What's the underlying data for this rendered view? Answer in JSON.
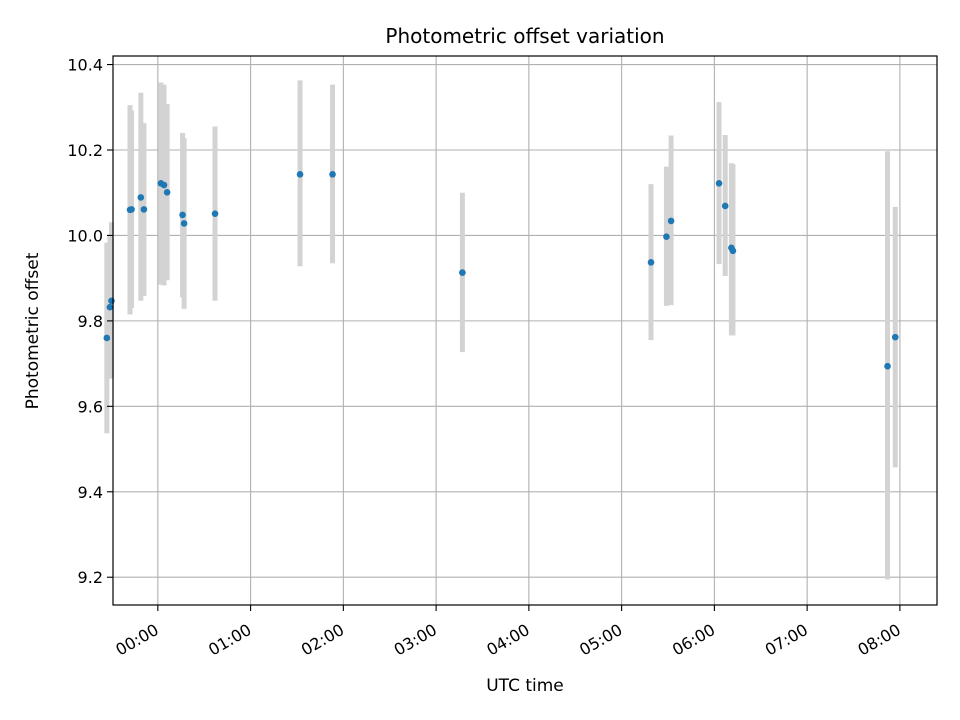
{
  "chart_data": {
    "type": "scatter",
    "title": "Photometric offset variation",
    "xlabel": "UTC time",
    "ylabel": "Photometric offset",
    "grid": true,
    "xlim": [
      "-00:29",
      "08:24"
    ],
    "ylim": [
      9.135,
      10.42
    ],
    "x_ticks": [
      "00:00",
      "01:00",
      "02:00",
      "03:00",
      "04:00",
      "05:00",
      "06:00",
      "07:00",
      "08:00"
    ],
    "y_ticks": [
      9.2,
      9.4,
      9.6,
      9.8,
      10.0,
      10.2,
      10.4
    ],
    "marker_color": "#1f77b4",
    "errorbar_color": "#d3d3d3",
    "points": [
      {
        "x": "-00:33",
        "y": 9.76,
        "ylow": 9.537,
        "yhigh": 9.983
      },
      {
        "x": "-00:31",
        "y": 9.832,
        "ylow": 9.665,
        "yhigh": 9.999
      },
      {
        "x": "-00:30",
        "y": 9.847,
        "ylow": 9.668,
        "yhigh": 10.031
      },
      {
        "x": "-00:18",
        "y": 10.06,
        "ylow": 9.815,
        "yhigh": 10.305
      },
      {
        "x": "-00:17",
        "y": 10.061,
        "ylow": 9.83,
        "yhigh": 10.292
      },
      {
        "x": "-00:11",
        "y": 10.089,
        "ylow": 9.847,
        "yhigh": 10.334
      },
      {
        "x": "-00:09",
        "y": 10.061,
        "ylow": 9.858,
        "yhigh": 10.263
      },
      {
        "x": "00:02",
        "y": 10.122,
        "ylow": 9.885,
        "yhigh": 10.358
      },
      {
        "x": "00:04",
        "y": 10.118,
        "ylow": 9.883,
        "yhigh": 10.353
      },
      {
        "x": "00:06",
        "y": 10.101,
        "ylow": 9.895,
        "yhigh": 10.308
      },
      {
        "x": "00:16",
        "y": 10.048,
        "ylow": 9.855,
        "yhigh": 10.24
      },
      {
        "x": "00:17",
        "y": 10.028,
        "ylow": 9.828,
        "yhigh": 10.228
      },
      {
        "x": "00:37",
        "y": 10.051,
        "ylow": 9.847,
        "yhigh": 10.255
      },
      {
        "x": "01:32",
        "y": 10.143,
        "ylow": 9.928,
        "yhigh": 10.363
      },
      {
        "x": "01:53",
        "y": 10.143,
        "ylow": 9.935,
        "yhigh": 10.353
      },
      {
        "x": "03:17",
        "y": 9.913,
        "ylow": 9.727,
        "yhigh": 10.1
      },
      {
        "x": "05:19",
        "y": 9.937,
        "ylow": 9.755,
        "yhigh": 10.12
      },
      {
        "x": "05:29",
        "y": 9.997,
        "ylow": 9.835,
        "yhigh": 10.161
      },
      {
        "x": "05:32",
        "y": 10.034,
        "ylow": 9.837,
        "yhigh": 10.234
      },
      {
        "x": "06:03",
        "y": 10.122,
        "ylow": 9.933,
        "yhigh": 10.312
      },
      {
        "x": "06:07",
        "y": 10.069,
        "ylow": 9.905,
        "yhigh": 10.235
      },
      {
        "x": "06:11",
        "y": 9.971,
        "ylow": 9.766,
        "yhigh": 10.169
      },
      {
        "x": "06:12",
        "y": 9.964,
        "ylow": 9.766,
        "yhigh": 10.167
      },
      {
        "x": "07:52",
        "y": 9.694,
        "ylow": 9.195,
        "yhigh": 10.197
      },
      {
        "x": "07:57",
        "y": 9.762,
        "ylow": 9.457,
        "yhigh": 10.067
      }
    ]
  }
}
